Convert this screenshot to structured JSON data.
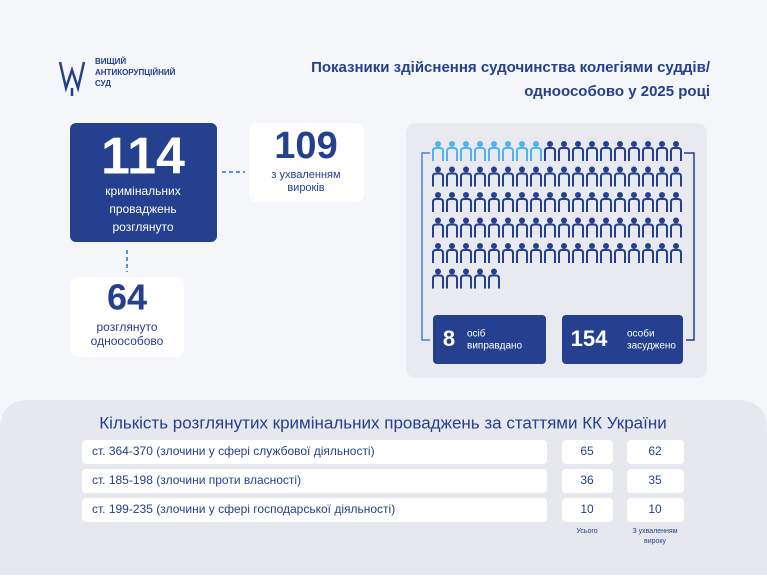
{
  "header": {
    "logo_lines": [
      "ВИЩИЙ",
      "АНТИКОРУПЦІЙНИЙ",
      "СУД"
    ],
    "title_lines": [
      "Показники здійснення судочинства колегіями суддів/",
      "одноособово у 2025 році"
    ]
  },
  "stats": {
    "considered": {
      "value": 114,
      "label_lines": [
        "кримінальних",
        "проваджень",
        "розглянуто"
      ]
    },
    "verdicts": {
      "value": 109,
      "label_lines": [
        "з ухваленням",
        "вироків"
      ]
    },
    "single": {
      "value": 64,
      "label_lines": [
        "розглянуто",
        "одноособово"
      ]
    }
  },
  "people": {
    "acquitted": {
      "value": 8,
      "label_lines": [
        "осіб",
        "виправдано"
      ]
    },
    "convicted": {
      "value": 154,
      "label_lines": [
        "особи",
        "засуджено"
      ]
    }
  },
  "table": {
    "title": "Кількість розглянутих кримінальних проваджень за статтями КК України",
    "rows": [
      [
        "ст. 364-370 (злочини у сфері службової діяльності)",
        65,
        62
      ],
      [
        "ст. 185-198 (злочини проти власності)",
        36,
        35
      ],
      [
        "ст. 199-235 (злочини у сфері господарської діяльності)",
        10,
        10
      ]
    ],
    "column_labels": [
      "Усього",
      [
        "З ухваленням",
        "вироку"
      ]
    ]
  }
}
